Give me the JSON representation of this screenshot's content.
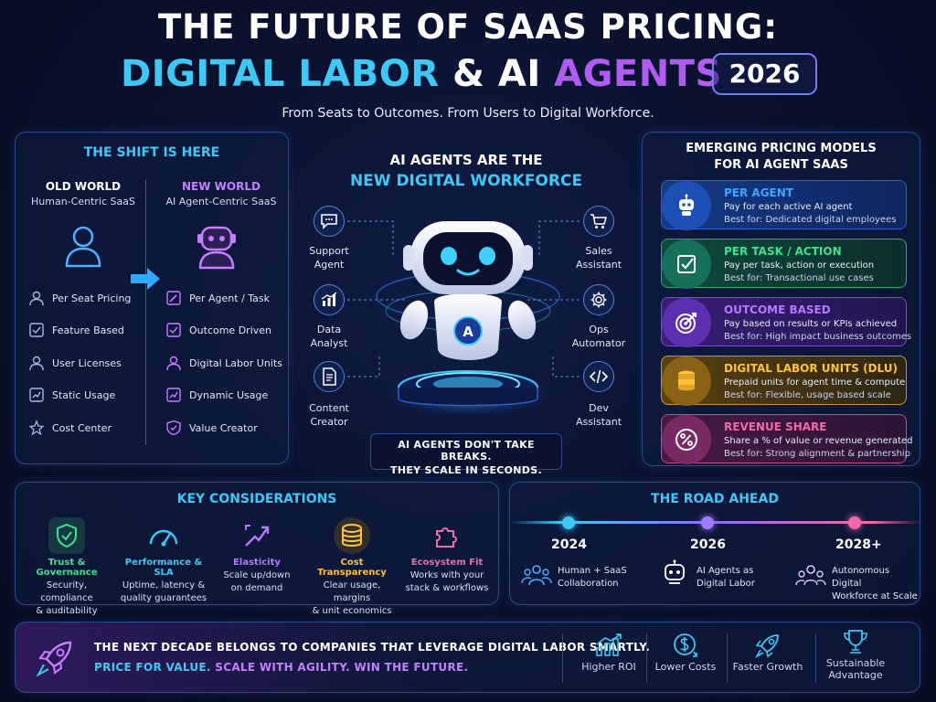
{
  "header": {
    "title_line1": "THE FUTURE OF SAAS PRICING:",
    "title_line2_part1": "DIGITAL LABOR",
    "title_line2_amp": "&",
    "title_line2_ai": "AI",
    "title_line2_agents": "AGENTS",
    "year": "2026",
    "subtitle": "From Seats to Outcomes. From Users to Digital Workforce."
  },
  "shift": {
    "heading": "THE SHIFT IS HERE",
    "old": {
      "title": "OLD WORLD",
      "subtitle": "Human-Centric SaaS",
      "items": [
        "Per Seat Pricing",
        "Feature Based",
        "User Licenses",
        "Static Usage",
        "Cost Center"
      ]
    },
    "new": {
      "title": "NEW WORLD",
      "subtitle": "AI Agent-Centric SaaS",
      "items": [
        "Per Agent / Task",
        "Outcome Driven",
        "Digital Labor Units",
        "Dynamic Usage",
        "Value Creator"
      ]
    }
  },
  "center": {
    "heading_line1": "AI AGENTS ARE THE",
    "heading_line2": "NEW DIGITAL WORKFORCE",
    "robot_badge": "A",
    "agents": [
      {
        "line1": "Support",
        "line2": "Agent"
      },
      {
        "line1": "Data",
        "line2": "Analyst"
      },
      {
        "line1": "Content",
        "line2": "Creator"
      },
      {
        "line1": "Sales",
        "line2": "Assistant"
      },
      {
        "line1": "Ops",
        "line2": "Automator"
      },
      {
        "line1": "Dev",
        "line2": "Assistant"
      }
    ],
    "tagline_line1": "AI AGENTS DON'T TAKE BREAKS.",
    "tagline_line2": "THEY SCALE IN SECONDS."
  },
  "models": {
    "heading_line1": "EMERGING PRICING MODELS",
    "heading_line2": "FOR AI AGENT SAAS",
    "items": [
      {
        "title": "PER AGENT",
        "desc": "Pay for each active AI agent",
        "best": "Best for: Dedicated digital employees",
        "color": "#3fa5ff"
      },
      {
        "title": "PER TASK / ACTION",
        "desc": "Pay per task, action or execution",
        "best": "Best for: Transactional use cases",
        "color": "#3fe08f"
      },
      {
        "title": "OUTCOME BASED",
        "desc": "Pay based on results or KPIs achieved",
        "best": "Best for: High impact business outcomes",
        "color": "#b579ff"
      },
      {
        "title": "DIGITAL LABOR UNITS (DLU)",
        "desc": "Prepaid units for agent time & compute",
        "best": "Best for: Flexible, usage based scale",
        "color": "#ffc23a"
      },
      {
        "title": "REVENUE SHARE",
        "desc": "Share a % of value or revenue generated",
        "best": "Best for: Strong alignment & partnership",
        "color": "#f06aa8"
      }
    ]
  },
  "considerations": {
    "heading": "KEY CONSIDERATIONS",
    "items": [
      {
        "title": "Trust & Governance",
        "line1": "Security, compliance",
        "line2": "& auditability",
        "color": "#3fe08f"
      },
      {
        "title": "Performance & SLA",
        "line1": "Uptime, latency &",
        "line2": "quality guarantees",
        "color": "#3fc8f5"
      },
      {
        "title": "Elasticity",
        "line1": "Scale up/down",
        "line2": "on demand",
        "color": "#b579ff"
      },
      {
        "title": "Cost Transparency",
        "line1": "Clear usage, margins",
        "line2": "& unit economics",
        "color": "#ffc23a"
      },
      {
        "title": "Ecosystem Fit",
        "line1": "Works with your",
        "line2": "stack & workflows",
        "color": "#f06aa8"
      }
    ]
  },
  "road": {
    "heading": "THE ROAD AHEAD",
    "milestones": [
      {
        "year": "2024",
        "line1": "Human + SaaS",
        "line2": "Collaboration"
      },
      {
        "year": "2026",
        "line1": "AI Agents as",
        "line2": "Digital Labor"
      },
      {
        "year": "2028+",
        "line1": "Autonomous Digital",
        "line2": "Workforce at Scale"
      }
    ]
  },
  "footer": {
    "line1": "THE NEXT DECADE BELONGS TO COMPANIES THAT LEVERAGE DIGITAL LABOR SMARTLY.",
    "line2_a": "PRICE FOR VALUE.",
    "line2_b": "SCALE WITH AGILITY.",
    "line2_c": "WIN THE FUTURE.",
    "benefits": [
      {
        "line1": "Higher ROI",
        "line2": ""
      },
      {
        "line1": "Lower Costs",
        "line2": ""
      },
      {
        "line1": "Faster Growth",
        "line2": ""
      },
      {
        "line1": "Sustainable",
        "line2": "Advantage"
      }
    ]
  }
}
